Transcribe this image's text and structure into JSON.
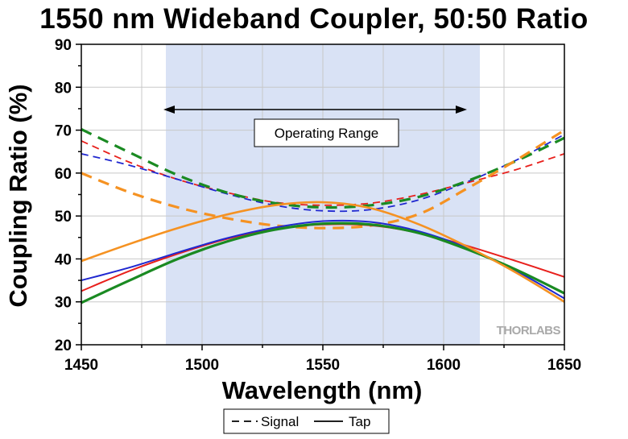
{
  "chart_data": {
    "type": "line",
    "title": "1550 nm Wideband Coupler, 50:50 Ratio",
    "xlabel": "Wavelength (nm)",
    "ylabel": "Coupling Ratio (%)",
    "xlim": [
      1450,
      1650
    ],
    "ylim": [
      20,
      90
    ],
    "x_ticks": [
      1450,
      1500,
      1550,
      1600,
      1650
    ],
    "y_ticks": [
      20,
      30,
      40,
      50,
      60,
      70,
      80,
      90
    ],
    "grid": true,
    "operating_range": {
      "label": "Operating Range",
      "x": [
        1485,
        1615
      ],
      "fill": "#d9e2f5"
    },
    "legend": {
      "placement": "bottom-center",
      "entries": [
        {
          "label": "Signal",
          "style": "dashed"
        },
        {
          "label": "Tap",
          "style": "solid"
        }
      ]
    },
    "watermark": "THORLABS",
    "series": [
      {
        "kind": "Signal",
        "color": "#e8201c",
        "width": 1.8,
        "x": [
          1450,
          1470,
          1490,
          1510,
          1530,
          1550,
          1570,
          1590,
          1610,
          1630,
          1650
        ],
        "y": [
          67.5,
          62.5,
          58.5,
          55.5,
          53.2,
          52.5,
          53.0,
          55.0,
          57.8,
          60.8,
          64.5
        ]
      },
      {
        "kind": "Signal",
        "color": "#2028d0",
        "width": 1.8,
        "x": [
          1450,
          1470,
          1490,
          1510,
          1530,
          1550,
          1570,
          1590,
          1610,
          1630,
          1650
        ],
        "y": [
          64.5,
          61.8,
          58.5,
          55.2,
          52.5,
          51.2,
          51.5,
          53.8,
          58.0,
          63.0,
          69.0
        ]
      },
      {
        "kind": "Signal",
        "color": "#1a8a22",
        "width": 3.2,
        "x": [
          1450,
          1470,
          1490,
          1510,
          1530,
          1550,
          1570,
          1590,
          1610,
          1630,
          1650
        ],
        "y": [
          70.2,
          64.8,
          59.5,
          55.5,
          53.0,
          52.0,
          52.5,
          54.5,
          58.2,
          62.8,
          68.2
        ]
      },
      {
        "kind": "Signal",
        "color": "#f59222",
        "width": 3.2,
        "x": [
          1450,
          1470,
          1490,
          1510,
          1530,
          1550,
          1570,
          1590,
          1610,
          1630,
          1650
        ],
        "y": [
          60.0,
          55.5,
          52.0,
          49.5,
          47.8,
          47.2,
          47.8,
          50.5,
          56.5,
          63.0,
          70.0
        ]
      },
      {
        "kind": "Tap",
        "color": "#e8201c",
        "width": 2,
        "x": [
          1450,
          1470,
          1490,
          1510,
          1530,
          1550,
          1570,
          1590,
          1610,
          1630,
          1650
        ],
        "y": [
          32.5,
          37.2,
          41.2,
          44.6,
          47.0,
          48.0,
          47.8,
          46.0,
          43.0,
          39.5,
          35.8
        ]
      },
      {
        "kind": "Tap",
        "color": "#2028d0",
        "width": 2,
        "x": [
          1450,
          1470,
          1490,
          1510,
          1530,
          1550,
          1570,
          1590,
          1610,
          1630,
          1650
        ],
        "y": [
          35.0,
          38.0,
          41.5,
          44.8,
          47.3,
          48.8,
          48.6,
          46.4,
          42.5,
          37.2,
          30.8
        ]
      },
      {
        "kind": "Tap",
        "color": "#1a8a22",
        "width": 3.2,
        "x": [
          1450,
          1470,
          1490,
          1510,
          1530,
          1550,
          1570,
          1590,
          1610,
          1630,
          1650
        ],
        "y": [
          29.8,
          35.0,
          40.0,
          44.0,
          46.8,
          48.2,
          48.0,
          46.0,
          42.2,
          37.5,
          32.0
        ]
      },
      {
        "kind": "Tap",
        "color": "#f59222",
        "width": 2.6,
        "x": [
          1450,
          1470,
          1490,
          1510,
          1530,
          1550,
          1570,
          1590,
          1610,
          1630,
          1650
        ],
        "y": [
          39.5,
          43.5,
          47.2,
          50.3,
          52.5,
          53.2,
          51.8,
          48.0,
          42.8,
          36.8,
          30.0
        ]
      }
    ]
  }
}
